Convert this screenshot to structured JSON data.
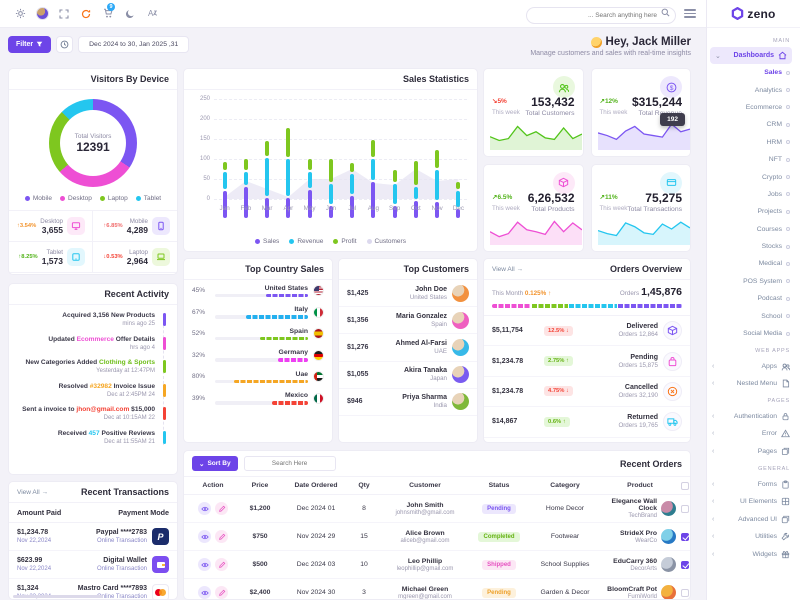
{
  "topbar": {
    "search_placeholder": "... Search anything here",
    "cart_badge": "9"
  },
  "brand": {
    "name": "zeno"
  },
  "header": {
    "greeting": "Hey, Jack Miller",
    "subtitle": "Manage customers and sales with real-time insights"
  },
  "filterbar": {
    "filter_label": "Filter",
    "date_range": "Dec 2024 to 30, Jan 2025 ,31"
  },
  "sidebar": {
    "section_main": "MAIN",
    "dashboards_label": "Dashboards",
    "active_child": "Sales",
    "dashboard_children": [
      "Sales",
      "Analytics",
      "Ecommerce",
      "CRM",
      "HRM",
      "NFT",
      "Crypto",
      "Jobs",
      "Projects",
      "Courses",
      "Stocks",
      "Medical",
      "POS System",
      "Podcast",
      "School",
      "Social Media"
    ],
    "section_webapps": "WEB APPS",
    "webapps_items": [
      {
        "label": "Apps",
        "icon": "users"
      },
      {
        "label": "Nested Menu",
        "icon": "file"
      }
    ],
    "section_pages": "PAGES",
    "pages_items": [
      {
        "label": "Authentication",
        "icon": "lock"
      },
      {
        "label": "Error",
        "icon": "warning"
      },
      {
        "label": "Pages",
        "icon": "pages"
      }
    ],
    "section_general": "GENERAL",
    "general_items": [
      {
        "label": "Forms",
        "icon": "clipboard"
      },
      {
        "label": "UI Elements",
        "icon": "grid"
      },
      {
        "label": "Advanced UI",
        "icon": "layers"
      },
      {
        "label": "Utilities",
        "icon": "wrench"
      },
      {
        "label": "Widgets",
        "icon": "gift"
      }
    ]
  },
  "visitors": {
    "title": "Visitors By Device",
    "center_label": "Total Visitors",
    "total": "12391",
    "footer_stats": [
      {
        "label": "Desktop",
        "value": "3,655",
        "delta": "3.54%",
        "dir": "up",
        "delta_color": "#f2932c",
        "icon": "monitor",
        "color": "#ee4fd4",
        "bg": "#fde9f8"
      },
      {
        "label": "Mobile",
        "value": "4,289",
        "delta": "6.85%",
        "dir": "up",
        "delta_color": "#f06a6a",
        "icon": "phone",
        "color": "#7c56f2",
        "bg": "#ede8fd"
      },
      {
        "label": "Tablet",
        "value": "1,573",
        "delta": "8.25%",
        "dir": "up",
        "delta_color": "#52b31a",
        "icon": "tablet",
        "color": "#24c6ef",
        "bg": "#e2f7fd"
      },
      {
        "label": "Laptop",
        "value": "2,964",
        "delta": "0.53%",
        "dir": "down",
        "delta_color": "#f44336",
        "icon": "laptop",
        "color": "#7ec71f",
        "bg": "#edf8dc"
      }
    ]
  },
  "sales_statistics": {
    "title": "Sales Statistics"
  },
  "stat_cards": [
    {
      "value": "153,432",
      "label": "Total Customers",
      "delta": "5%",
      "dir": "down",
      "period": "This week",
      "color": "#52c41a",
      "bg": "#e9f8de",
      "icon": "users",
      "spark": [
        35,
        25,
        30,
        62,
        38,
        48,
        32,
        28,
        58,
        30,
        42
      ]
    },
    {
      "value": "$315,244",
      "label": "Total Revenue",
      "delta": "12%",
      "dir": "up",
      "period": "This week",
      "color": "#7c56f2",
      "bg": "#ede8fd",
      "icon": "dollar",
      "tooltip": "192",
      "spark": [
        45,
        38,
        28,
        50,
        62,
        42,
        38,
        34,
        68,
        48,
        55
      ]
    },
    {
      "value": "6,26,532",
      "label": "Total Products",
      "delta": "6.5%",
      "dir": "up",
      "period": "This week",
      "color": "#ee4fd4",
      "bg": "#fde9f8",
      "icon": "box",
      "spark": [
        35,
        22,
        30,
        60,
        40,
        35,
        28,
        62,
        35,
        58,
        40
      ]
    },
    {
      "value": "75,275",
      "label": "Total Transactions",
      "delta": "11%",
      "dir": "up",
      "period": "This week",
      "color": "#24c6ef",
      "bg": "#e2f7fd",
      "icon": "card",
      "spark": [
        38,
        30,
        25,
        58,
        48,
        32,
        28,
        55,
        42,
        60,
        45
      ]
    }
  ],
  "top_countries": {
    "title": "Top Country Sales",
    "rows": [
      {
        "name": "United States",
        "pct": "45%",
        "value": 45,
        "color": "#7c56f2",
        "flag": "us"
      },
      {
        "name": "Italy",
        "pct": "67%",
        "value": 67,
        "color": "#24b0ef",
        "flag": "it"
      },
      {
        "name": "Spain",
        "pct": "52%",
        "value": 52,
        "color": "#7ec71f",
        "flag": "es"
      },
      {
        "name": "Germany",
        "pct": "32%",
        "value": 32,
        "color": "#ee3ff2",
        "flag": "de"
      },
      {
        "name": "Uae",
        "pct": "80%",
        "value": 80,
        "color": "#f5a623",
        "flag": "ae"
      },
      {
        "name": "Mexico",
        "pct": "39%",
        "value": 39,
        "color": "#f44336",
        "flag": "mx"
      }
    ]
  },
  "top_customers": {
    "title": "Top Customers",
    "rows": [
      {
        "name": "John Doe",
        "country": "United States",
        "amount": "$1,425",
        "avatar": "#f2913f"
      },
      {
        "name": "Maria Gonzalez",
        "country": "Spain",
        "amount": "$1,356",
        "avatar": "#ef5fc0"
      },
      {
        "name": "Ahmed Al-Farsi",
        "country": "UAE",
        "amount": "$1,276",
        "avatar": "#37b9e8"
      },
      {
        "name": "Akira Tanaka",
        "country": "Japan",
        "amount": "$1,055",
        "avatar": "#7a5cf0"
      },
      {
        "name": "Priya Sharma",
        "country": "India",
        "amount": "$946",
        "avatar": "#7fb83a"
      }
    ]
  },
  "orders_overview": {
    "title": "Orders Overview",
    "view_all": "View All →",
    "this_month_label": "This Month",
    "this_month_pct": "0.125%",
    "orders_label": "Orders",
    "orders_total": "1,45,876",
    "bar_segments": [
      {
        "color": "#ee4fd4",
        "pct": 21
      },
      {
        "color": "#7ec71f",
        "pct": 19
      },
      {
        "color": "#24c6ef",
        "pct": 26
      },
      {
        "color": "#7c56f2",
        "pct": 34
      }
    ],
    "rows": [
      {
        "amount": "$5,11,754",
        "badge": "12.5%",
        "dir": "down",
        "name": "Delivered",
        "orders": "Orders 12,864",
        "icon": "box",
        "color": "#7c56f2"
      },
      {
        "amount": "$1,234.78",
        "badge": "2.75%",
        "dir": "up",
        "name": "Pending",
        "orders": "Orders 15,875",
        "icon": "bag",
        "color": "#ee4fd4"
      },
      {
        "amount": "$1,234.78",
        "badge": "4.75%",
        "dir": "down",
        "name": "Cancelled",
        "orders": "Orders 32,190",
        "icon": "xcircle",
        "color": "#f97316"
      },
      {
        "amount": "$14,867",
        "badge": "0.6%",
        "dir": "up",
        "name": "Returned",
        "orders": "Orders 19,765",
        "icon": "truck",
        "color": "#24c6ef"
      }
    ]
  },
  "recent_activity": {
    "title": "Recent Activity",
    "items": [
      {
        "pre": "Acquired 3,156 New Products",
        "hl": "",
        "post": "",
        "hl_color": "",
        "time": "mins ago 25",
        "bar": "#7c56f2"
      },
      {
        "pre": "Updated ",
        "hl": "Ecommerce",
        "post": " Offer Details",
        "hl_color": "#ee4fd4",
        "time": "hrs ago 4",
        "bar": "#ee4fd4"
      },
      {
        "pre": "New Categories Added ",
        "hl": "Clothing & Sports",
        "post": "",
        "hl_color": "#6fbe1a",
        "time": "Yesterday at 12:47PM",
        "bar": "#7ec71f"
      },
      {
        "pre": "Resolved ",
        "hl": "#32982",
        "post": " Invoice Issue",
        "hl_color": "#f5a623",
        "time": "Dec at 2:45PM 24",
        "bar": "#f5a623"
      },
      {
        "pre": "Sent a invoice to ",
        "hl": "jhon@gmail.com",
        "post": " $15,000",
        "hl_color": "#f44336",
        "time": "Dec at 10:15AM 22",
        "bar": "#f44336"
      },
      {
        "pre": "Received ",
        "hl": "457",
        "post": " Positive Reviews",
        "hl_color": "#24c6ef",
        "time": "Dec at 11:55AM 21",
        "bar": "#24c6ef"
      }
    ]
  },
  "recent_transactions": {
    "title": "Recent Transactions",
    "view_all": "View All →",
    "headers": [
      "Amount Paid",
      "Payment Mode"
    ],
    "rows": [
      {
        "amount": "$1,234.78",
        "date": "Nov 22,2024",
        "mode": "Paypal ****2783",
        "sub": "Online Transaction",
        "icon": "paypal"
      },
      {
        "amount": "$623.99",
        "date": "Nov 22,2024",
        "mode": "Digital Wallet",
        "sub": "Online Transaction",
        "icon": "wallet"
      },
      {
        "amount": "$1,324",
        "date": "Nov 22,2024",
        "mode": "Mastro Card ****7893",
        "sub": "Online Transaction",
        "icon": "mc"
      }
    ]
  },
  "recent_orders": {
    "title": "Recent Orders",
    "sort_label": "Sort By",
    "search_placeholder": "Search Here",
    "headers": [
      "Action",
      "Price",
      "Date Ordered",
      "Qty",
      "Customer",
      "Status",
      "Category",
      "Product"
    ],
    "rows": [
      {
        "price": "$1,200",
        "date": "Dec 2024 01",
        "qty": "8",
        "customer": "John Smith",
        "email": "johnsmith@gmail.com",
        "status": "Pending",
        "badge": "purple",
        "category": "Home Decor",
        "product": "Elegance Wall Clock",
        "brand": "TechBrand",
        "avatar1": "#2e7d8f",
        "avatar2": "#c98ba8",
        "checked": false
      },
      {
        "price": "$750",
        "date": "Nov 2024 29",
        "qty": "15",
        "customer": "Alice Brown",
        "email": "aliceb@gmail.com",
        "status": "Completed",
        "badge": "green",
        "category": "Footwear",
        "product": "StrideX Pro",
        "brand": "WearCo",
        "avatar1": "#2779c4",
        "avatar2": "#7fd0e8",
        "checked": true
      },
      {
        "price": "$500",
        "date": "Dec 2024 03",
        "qty": "10",
        "customer": "Leo Phillip",
        "email": "leophillip@gmail.com",
        "status": "Shipped",
        "badge": "pink",
        "category": "School Supplies",
        "product": "EduCarry 360",
        "brand": "DecorArts",
        "avatar1": "#8a93a5",
        "avatar2": "#c5ccd8",
        "checked": true
      },
      {
        "price": "$2,400",
        "date": "Nov 2024 30",
        "qty": "3",
        "customer": "Michael Green",
        "email": "mgreen@gmail.com",
        "status": "Pending",
        "badge": "orange",
        "category": "Garden & Decor",
        "product": "BloomCraft Pot",
        "brand": "FurniWorld",
        "avatar1": "#e8703a",
        "avatar2": "#f3b13f",
        "checked": false
      }
    ]
  },
  "chart_data": [
    {
      "type": "pie",
      "variant": "donut",
      "title": "Visitors By Device",
      "labels": [
        "Mobile",
        "Desktop",
        "Laptop",
        "Tablet"
      ],
      "values": [
        4289,
        3655,
        2964,
        1573
      ],
      "colors": [
        "#7c56f2",
        "#ee4fd4",
        "#7ec71f",
        "#24c6ef"
      ],
      "center_label": "Total Visitors",
      "center_value": "12391",
      "legend_position": "bottom"
    },
    {
      "type": "bar",
      "variant": "stacked",
      "title": "Sales Statistics",
      "categories": [
        "Jan",
        "Feb",
        "Mar",
        "Apr",
        "May",
        "Jun",
        "Jul",
        "Aug",
        "Sep",
        "Oct",
        "Nov",
        "Dec"
      ],
      "series": [
        {
          "name": "Sales",
          "color": "#7c56f2",
          "values": [
            72,
            83,
            55,
            54,
            74,
            34,
            59,
            96,
            34,
            47,
            45,
            27
          ]
        },
        {
          "name": "Revenue",
          "color": "#24c6ef",
          "values": [
            48,
            37,
            100,
            99,
            46,
            55,
            57,
            56,
            55,
            36,
            81,
            46
          ]
        },
        {
          "name": "Profit",
          "color": "#7ec71f",
          "values": [
            25,
            33,
            42,
            77,
            32,
            64,
            27,
            47,
            37,
            64,
            48,
            22
          ]
        }
      ],
      "area_series": {
        "name": "Customers",
        "color": "#e7e4f3",
        "values": [
          5,
          45,
          25,
          5,
          50,
          50,
          75,
          40,
          35,
          75,
          45,
          50
        ]
      },
      "ylim": [
        0,
        250
      ],
      "yticks": [
        0,
        50,
        100,
        150,
        200,
        250
      ],
      "grid": true,
      "legend_position": "bottom"
    }
  ]
}
